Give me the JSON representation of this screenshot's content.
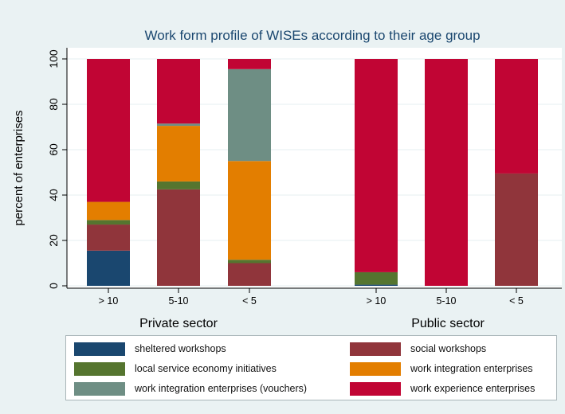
{
  "chart_data": {
    "type": "bar",
    "stacked": true,
    "title": "Work form profile of WISEs according to their age group",
    "xlabel": "",
    "ylabel": "percent of enterprises",
    "ylim": [
      0,
      100
    ],
    "yticks": [
      0,
      20,
      40,
      60,
      80,
      100
    ],
    "grid": true,
    "legend_position": "bottom",
    "groups": [
      {
        "name": "Private sector",
        "categories": [
          "> 10",
          "5-10",
          "< 5"
        ]
      },
      {
        "name": "Public sector",
        "categories": [
          "> 10",
          "5-10",
          "< 5"
        ]
      }
    ],
    "series": [
      {
        "name": "sheltered workshops",
        "color": "#1a476f",
        "values": [
          15.5,
          0,
          0,
          0.5,
          0,
          0
        ]
      },
      {
        "name": "social workshops",
        "color": "#90353b",
        "values": [
          11.5,
          42.5,
          10,
          0,
          0,
          49.5
        ]
      },
      {
        "name": "local service economy initiatives",
        "color": "#55752f",
        "values": [
          2,
          3.5,
          1.5,
          5.5,
          0,
          0
        ]
      },
      {
        "name": "work integration enterprises",
        "color": "#e37e00",
        "values": [
          8,
          24.5,
          43.5,
          0,
          0,
          0
        ]
      },
      {
        "name": "work integration enterprises (vouchers)",
        "color": "#6e8e84",
        "values": [
          0,
          1,
          40.5,
          0,
          0,
          0
        ]
      },
      {
        "name": "work experience enterprises",
        "color": "#c10534",
        "values": [
          63,
          28.5,
          4.5,
          94,
          100,
          50.5
        ]
      }
    ]
  }
}
